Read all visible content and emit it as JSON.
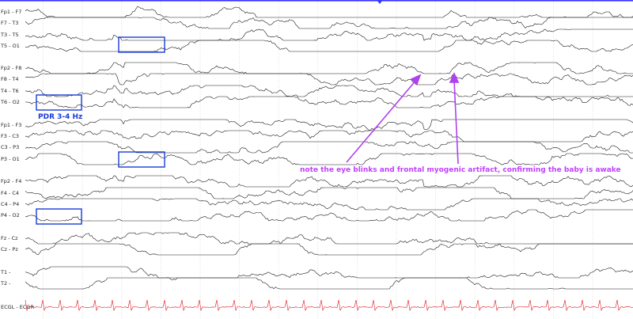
{
  "channels": [
    {
      "label": "Fp1 - F7"
    },
    {
      "label": "F7 - T3"
    },
    {
      "label": "T3 - T5"
    },
    {
      "label": "T5 - O1"
    },
    {
      "label": "Fp2 - F8"
    },
    {
      "label": "F8 - T4"
    },
    {
      "label": "T4 - T6"
    },
    {
      "label": "T6 - O2"
    },
    {
      "label": "Fp1 - F3"
    },
    {
      "label": "F3 - C3"
    },
    {
      "label": "C3 - P3"
    },
    {
      "label": "P3 - O1"
    },
    {
      "label": "Fp2 - F4"
    },
    {
      "label": "F4 - C4"
    },
    {
      "label": "C4 - P4"
    },
    {
      "label": "P4 - O2"
    },
    {
      "label": "Fz - Cz"
    },
    {
      "label": "Cz - Pz"
    },
    {
      "label": "T1 -"
    },
    {
      "label": "T2 -"
    },
    {
      "label": "ECGL - ECGR"
    }
  ],
  "annotations": {
    "pdr_label": "PDR 3-4 Hz",
    "artifact_note": "note the eye blinks and frontal myogenic artifact, confirming the baby is awake"
  },
  "colors": {
    "trace": "#1a1a1a",
    "ecg_trace": "#e0141e",
    "grid": "#c8c8c8",
    "box": "#1a3cd6",
    "pdr_text": "#1a3cd6",
    "note_text": "#c040ff",
    "arrow": "#b040f0",
    "top_bar": "#3a3aff"
  }
}
